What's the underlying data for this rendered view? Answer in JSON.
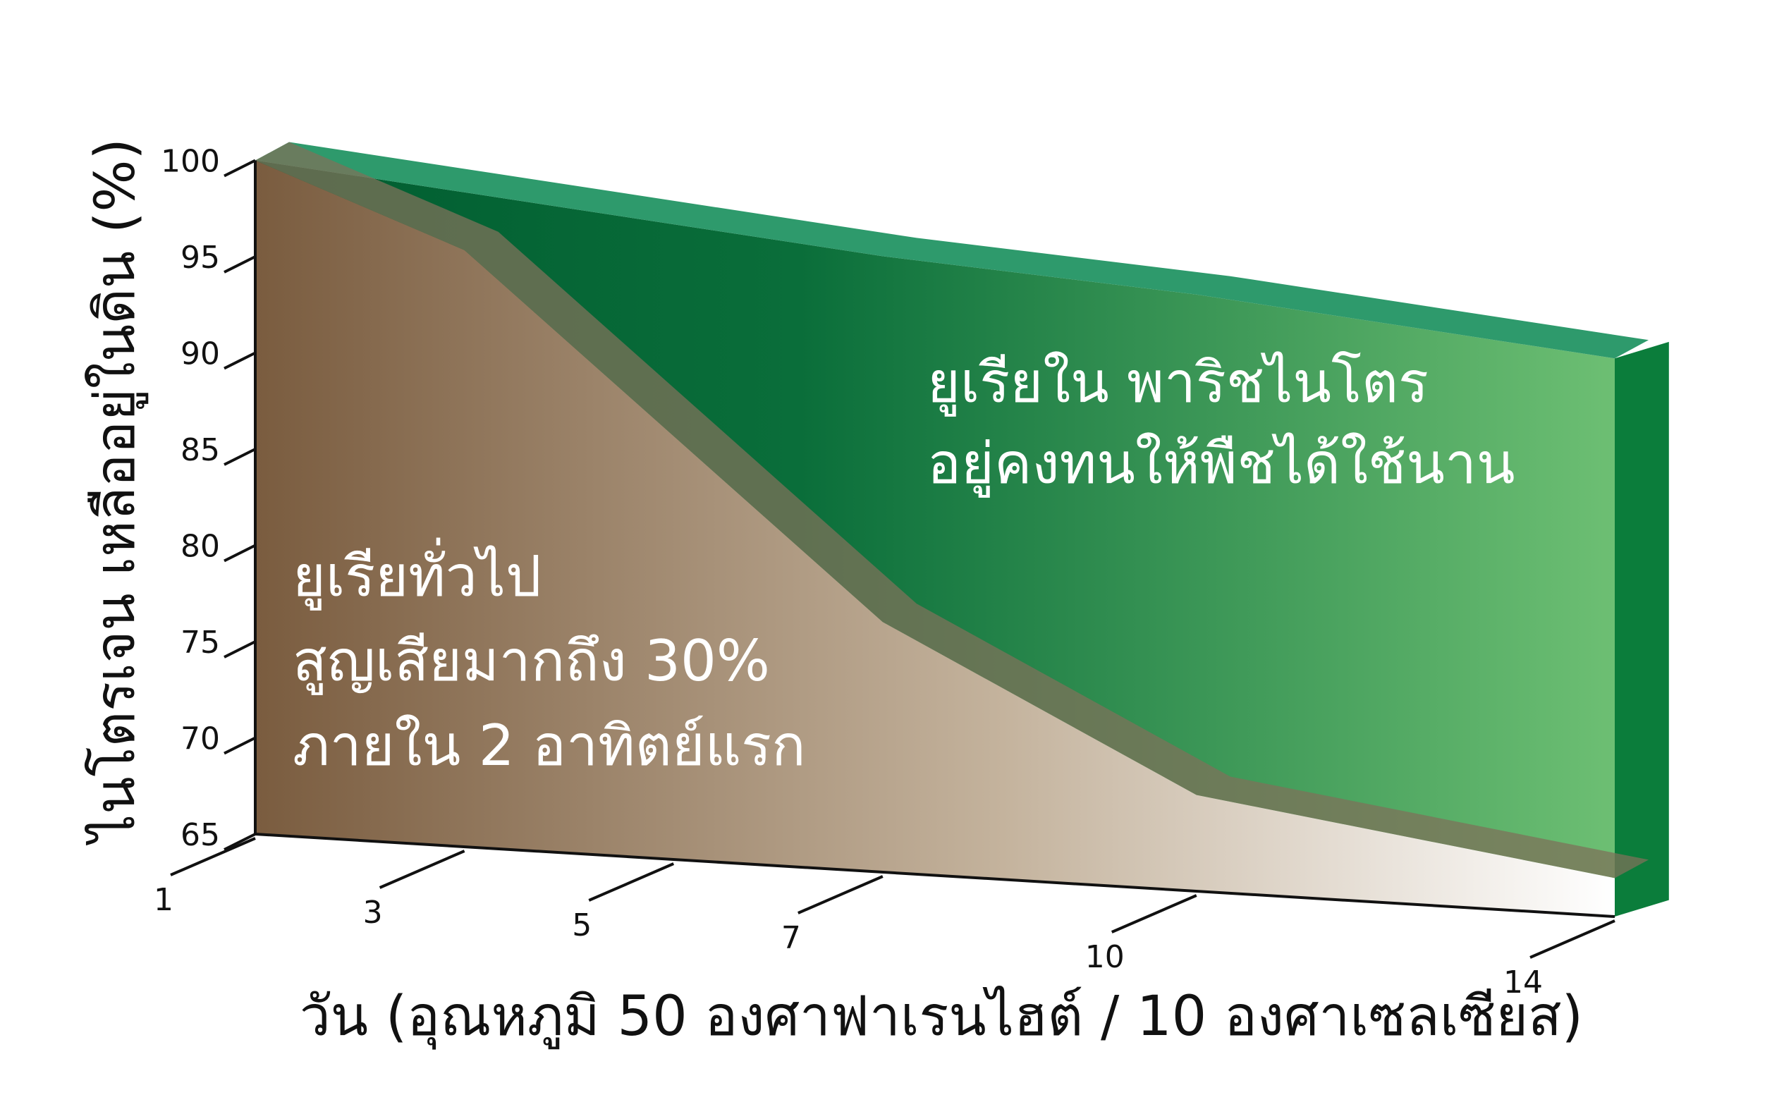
{
  "chart_data": {
    "type": "area",
    "title": "",
    "xlabel": "วัน (อุณหภูมิ 50 องศาฟาเรนไฮต์ / 10 องศาเซลเซียส)",
    "ylabel": "ไนโตรเจน เหลืออยู่ในดิน (%)",
    "x_ticks": [
      "1",
      "3",
      "5",
      "7",
      "10",
      "14"
    ],
    "y_ticks": [
      65,
      70,
      75,
      80,
      85,
      90,
      95,
      100
    ],
    "ylim": [
      65,
      100
    ],
    "grid": false,
    "series": [
      {
        "name": "ยูเรียใน พาริชไนโตร",
        "x": [
          1,
          3,
          5,
          7,
          10,
          14
        ],
        "values": [
          100,
          99,
          98,
          97,
          96,
          94
        ],
        "color": "#0a7a3c"
      },
      {
        "name": "ยูเรียทั่วไป",
        "x": [
          1,
          3,
          5,
          7,
          10,
          14
        ],
        "values": [
          100,
          96,
          87,
          78,
          70,
          67
        ],
        "color": "#8d6e52"
      }
    ],
    "annotations": [
      {
        "lines": [
          "ยูเรียใน พาริชไนโตร",
          "อยู่คงทนให้พืชได้ใช้นาน"
        ]
      },
      {
        "lines": [
          "ยูเรียทั่วไป",
          "สูญเสียมากถึง 30%",
          "ภายใน 2 อาทิตย์แรก"
        ]
      }
    ]
  }
}
